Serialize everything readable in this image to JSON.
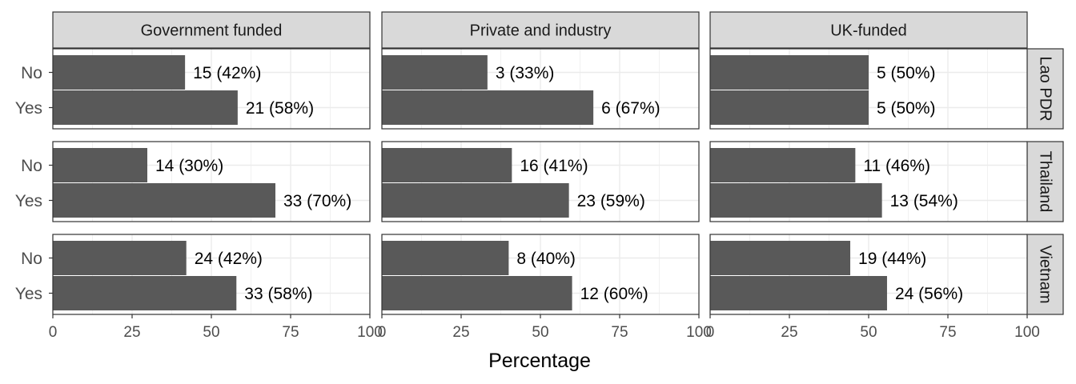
{
  "chart_data": {
    "type": "bar",
    "orientation": "horizontal",
    "xlabel": "Percentage",
    "ylabel": "",
    "xlim": [
      0,
      100
    ],
    "x_ticks": [
      0,
      25,
      50,
      75,
      100
    ],
    "categories": [
      "No",
      "Yes"
    ],
    "facet_columns": [
      "Government funded",
      "Private and industry",
      "UK-funded"
    ],
    "facet_rows": [
      "Lao PDR",
      "Thailand",
      "Vietnam"
    ],
    "grid": true,
    "bar_color": "#595959",
    "panels": [
      {
        "row": "Lao PDR",
        "column": "Government funded",
        "values": [
          41.7,
          58.3
        ],
        "labels": [
          "15 (42%)",
          "21 (58%)"
        ]
      },
      {
        "row": "Lao PDR",
        "column": "Private and industry",
        "values": [
          33.3,
          66.7
        ],
        "labels": [
          "3 (33%)",
          "6 (67%)"
        ]
      },
      {
        "row": "Lao PDR",
        "column": "UK-funded",
        "values": [
          50,
          50
        ],
        "labels": [
          "5 (50%)",
          "5 (50%)"
        ]
      },
      {
        "row": "Thailand",
        "column": "Government funded",
        "values": [
          29.8,
          70.2
        ],
        "labels": [
          "14 (30%)",
          "33 (70%)"
        ]
      },
      {
        "row": "Thailand",
        "column": "Private and industry",
        "values": [
          41.0,
          59.0
        ],
        "labels": [
          "16 (41%)",
          "23 (59%)"
        ]
      },
      {
        "row": "Thailand",
        "column": "UK-funded",
        "values": [
          45.8,
          54.2
        ],
        "labels": [
          "11 (46%)",
          "13 (54%)"
        ]
      },
      {
        "row": "Vietnam",
        "column": "Government funded",
        "values": [
          42.1,
          57.9
        ],
        "labels": [
          "24 (42%)",
          "33 (58%)"
        ]
      },
      {
        "row": "Vietnam",
        "column": "Private and industry",
        "values": [
          40,
          60
        ],
        "labels": [
          "8 (40%)",
          "12 (60%)"
        ]
      },
      {
        "row": "Vietnam",
        "column": "UK-funded",
        "values": [
          44.2,
          55.8
        ],
        "labels": [
          "19 (44%)",
          "24 (56%)"
        ]
      }
    ]
  }
}
